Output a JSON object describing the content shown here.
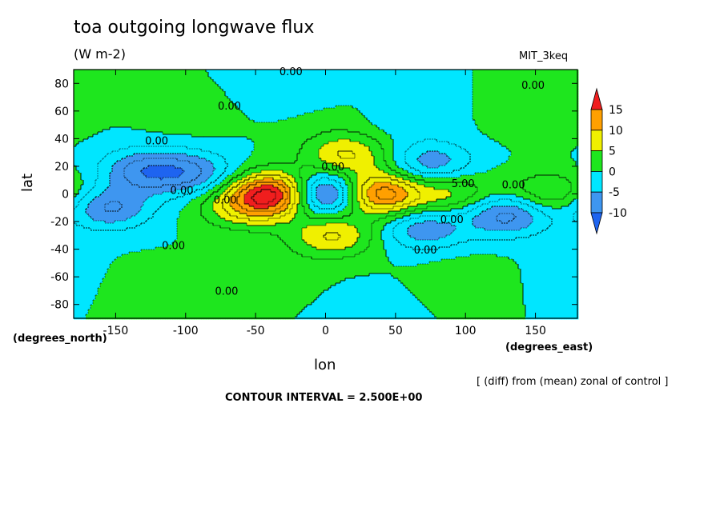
{
  "header": {
    "title": "toa outgoing longwave flux",
    "units": "(W m-2)",
    "model": "MIT_3keq"
  },
  "footer": {
    "interval": "CONTOUR INTERVAL = 2.500E+00",
    "note": "[ (diff) from (mean) zonal of control ]"
  },
  "chart_data": {
    "type": "heatmap",
    "title": "toa outgoing longwave flux",
    "subtitle": "(W m-2)",
    "xlabel": "lon",
    "x_unit_label": "(degrees_east)",
    "ylabel": "lat",
    "y_unit_label": "(degrees_north)",
    "xlim": [
      -180,
      180
    ],
    "ylim": [
      -90,
      90
    ],
    "x_ticks": [
      -150,
      -100,
      -50,
      0,
      50,
      100,
      150
    ],
    "y_ticks": [
      -80,
      -60,
      -40,
      -20,
      0,
      20,
      40,
      60,
      80
    ],
    "contour_interval": 2.5,
    "colorbar": {
      "labels": [
        "15",
        "10",
        "5",
        "0",
        "-5",
        "-10"
      ],
      "bands": [
        {
          "min": -15,
          "max": -10,
          "color": "#1e64f0"
        },
        {
          "min": -10,
          "max": -5,
          "color": "#3e96f0"
        },
        {
          "min": -5,
          "max": 0,
          "color": "#00e6ff"
        },
        {
          "min": 0,
          "max": 5,
          "color": "#1ee61e"
        },
        {
          "min": 5,
          "max": 10,
          "color": "#f0f000"
        },
        {
          "min": 10,
          "max": 15,
          "color": "#ffa000"
        },
        {
          "min": 15,
          "max": 20,
          "color": "#f01e1e"
        }
      ],
      "extend": "both"
    },
    "features": [
      {
        "lon": -35,
        "lat": 0,
        "value": 20,
        "note": "positive maximum west of 0"
      },
      {
        "lon": 35,
        "lat": 0,
        "value": 17
      },
      {
        "lon": 0,
        "lat": 0,
        "value": -18,
        "note": "negative minimum at 0"
      },
      {
        "lon": 15,
        "lat": 28,
        "value": 8
      },
      {
        "lon": 5,
        "lat": -30,
        "value": 8
      },
      {
        "lon": -130,
        "lat": 17,
        "value": -8
      },
      {
        "lon": -95,
        "lat": 15,
        "value": -7
      },
      {
        "lon": 75,
        "lat": 22,
        "value": -7
      },
      {
        "lon": -155,
        "lat": -10,
        "value": -8
      },
      {
        "lon": 70,
        "lat": -25,
        "value": -7
      },
      {
        "lon": 130,
        "lat": -15,
        "value": -9
      },
      {
        "lon": 90,
        "lat": 0,
        "value": 6
      },
      {
        "lon": 160,
        "lat": 0,
        "value": 6
      },
      {
        "lon": -60,
        "lat": -10,
        "value": 6
      },
      {
        "lon": -40,
        "lat": -60,
        "value": 2
      },
      {
        "lon": -120,
        "lat": -68,
        "value": 2
      },
      {
        "lon": 100,
        "lat": -62,
        "value": 2
      },
      {
        "lon": 150,
        "lat": 55,
        "value": 2
      },
      {
        "lon": -100,
        "lat": 55,
        "value": 1
      },
      {
        "lon": 0,
        "lat": 55,
        "value": 1
      },
      {
        "lon": 60,
        "lat": 55,
        "value": -2
      },
      {
        "lon": -20,
        "lat": 72,
        "value": -2
      },
      {
        "lon": 170,
        "lat": -60,
        "value": -1
      },
      {
        "lon": 30,
        "lat": -80,
        "value": -1
      }
    ],
    "contour_labels": [
      {
        "text": "0.00",
        "lon": -33,
        "lat": 86
      },
      {
        "text": "0.00",
        "lon": 140,
        "lat": 76
      },
      {
        "text": "0.00",
        "lon": -77,
        "lat": 61
      },
      {
        "text": "0.00",
        "lon": -129,
        "lat": 36
      },
      {
        "text": "0.00",
        "lon": -111,
        "lat": 0
      },
      {
        "text": "0.00",
        "lon": -80,
        "lat": -7
      },
      {
        "text": "0.00",
        "lon": -3,
        "lat": 17
      },
      {
        "text": "5.00",
        "lon": 90,
        "lat": 5
      },
      {
        "text": "0.00",
        "lon": 126,
        "lat": 4
      },
      {
        "text": "0.00",
        "lon": 82,
        "lat": -21
      },
      {
        "text": "0.00",
        "lon": -117,
        "lat": -40
      },
      {
        "text": "0.00",
        "lon": 63,
        "lat": -43
      },
      {
        "text": "0.00",
        "lon": -79,
        "lat": -73
      }
    ]
  }
}
